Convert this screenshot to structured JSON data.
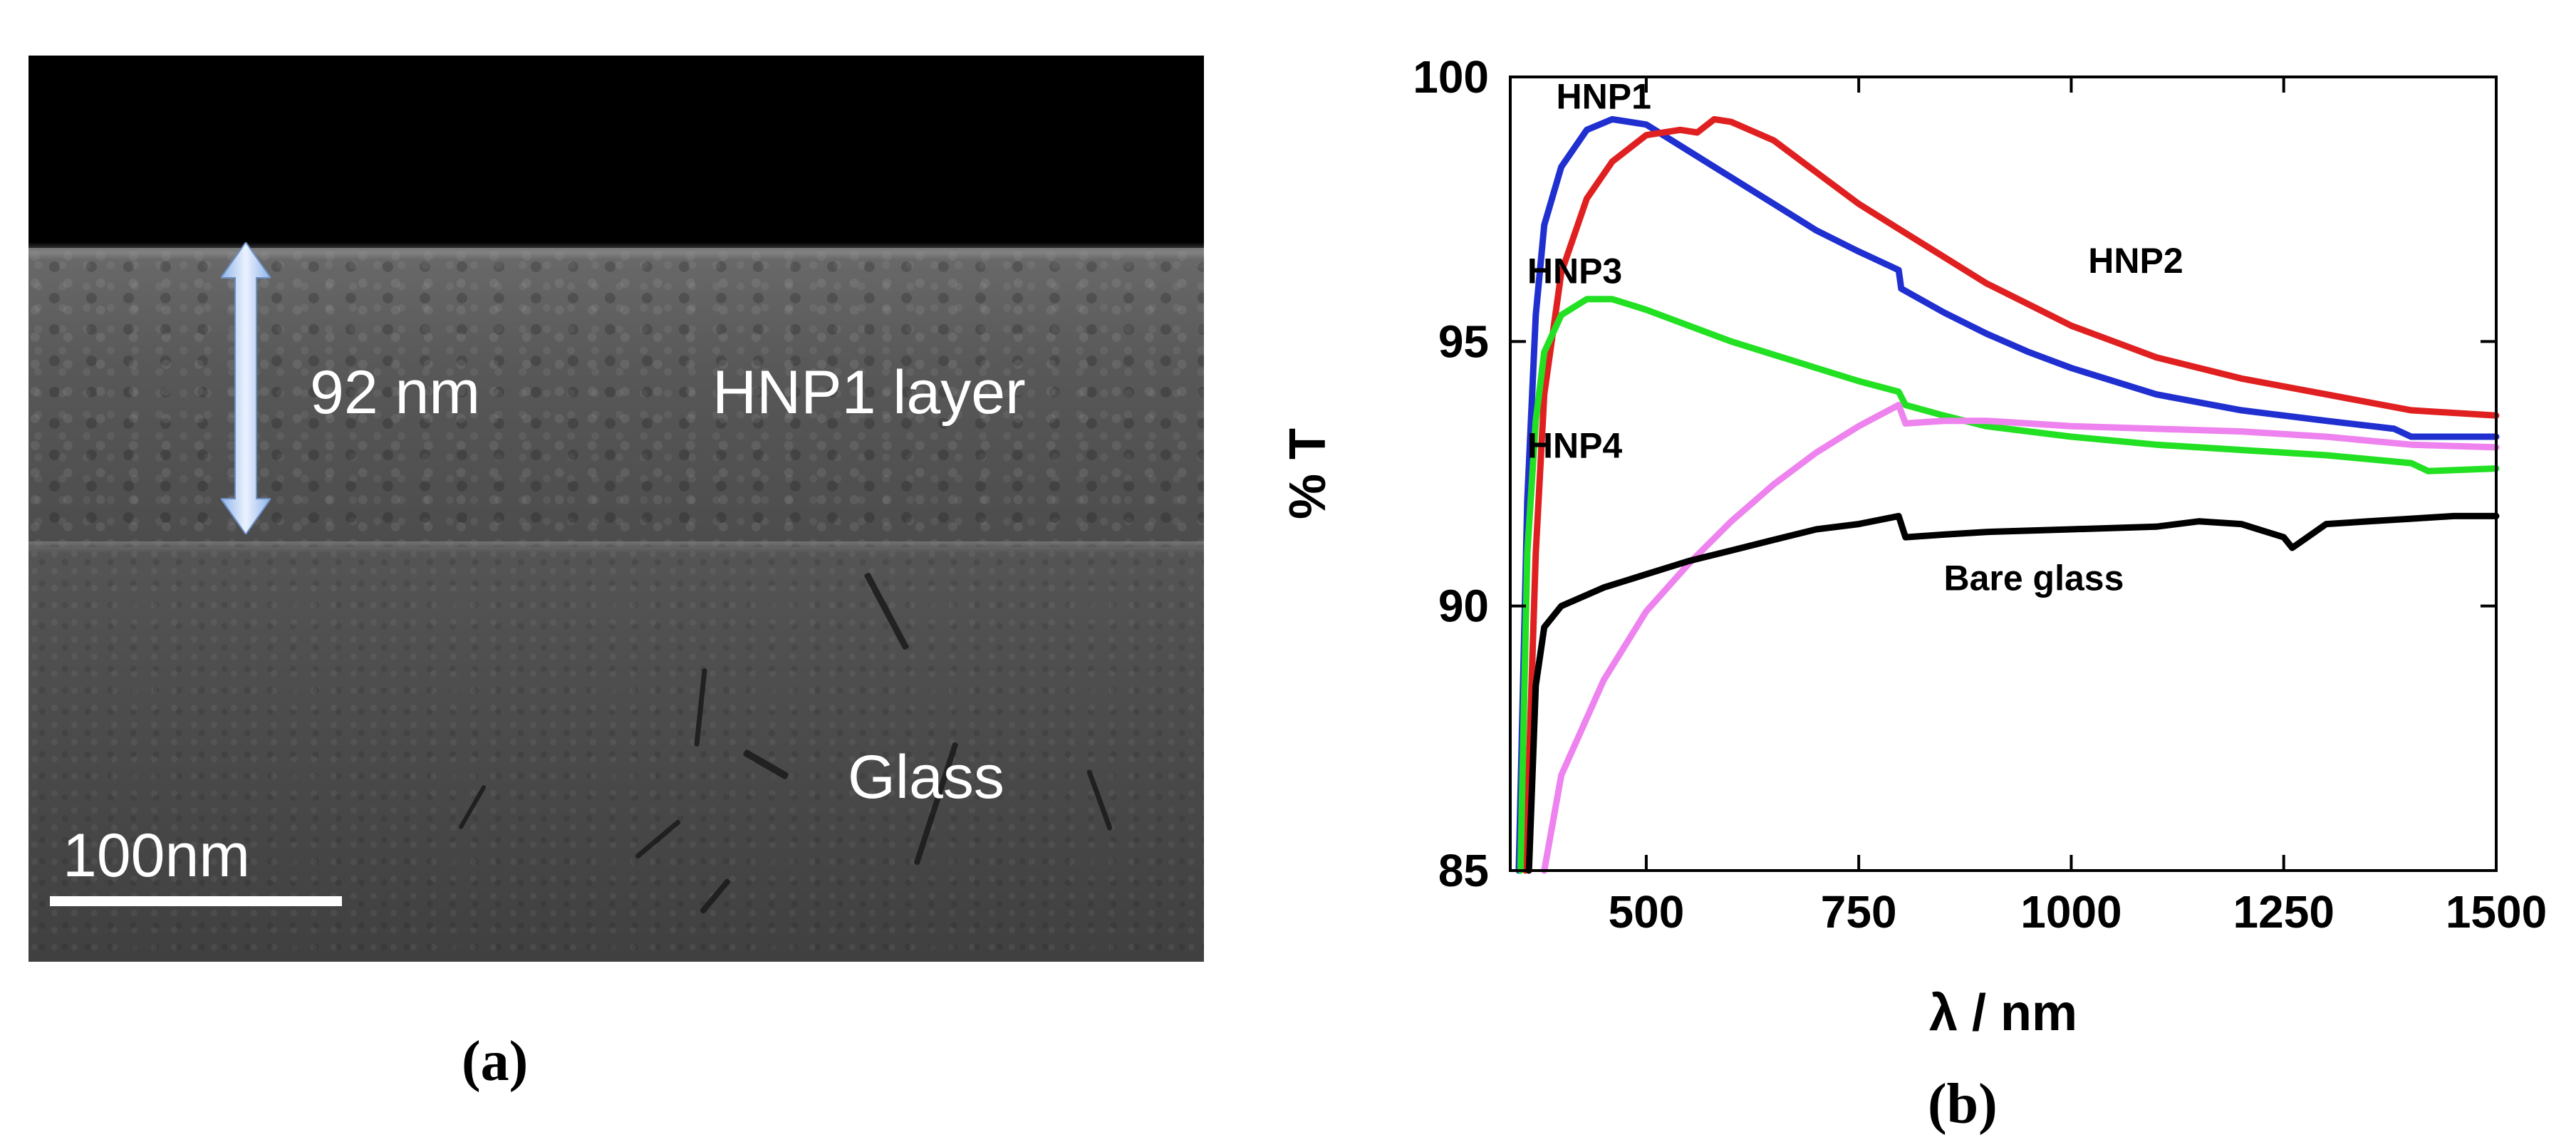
{
  "panel_a": {
    "thickness_label": "92 nm",
    "layer_label": "HNP1 layer",
    "substrate_label": "Glass",
    "scale_label": "100nm",
    "caption": "(a)"
  },
  "panel_b": {
    "caption": "(b)"
  },
  "chart_data": {
    "type": "line",
    "xlabel": "λ / nm",
    "ylabel": "% T",
    "xlim": [
      340,
      1500
    ],
    "ylim": [
      85,
      100
    ],
    "xticks": [
      500,
      750,
      1000,
      1250,
      1500
    ],
    "yticks": [
      85,
      90,
      95,
      100
    ],
    "grid": false,
    "legend": "inline labels",
    "series": [
      {
        "name": "HNP1",
        "color": "#1f2fd0",
        "points": [
          [
            350,
            85
          ],
          [
            360,
            92
          ],
          [
            370,
            95.5
          ],
          [
            380,
            97.2
          ],
          [
            400,
            98.3
          ],
          [
            430,
            99.0
          ],
          [
            460,
            99.2
          ],
          [
            500,
            99.1
          ],
          [
            550,
            98.6
          ],
          [
            600,
            98.1
          ],
          [
            650,
            97.6
          ],
          [
            700,
            97.1
          ],
          [
            750,
            96.7
          ],
          [
            797,
            96.35
          ],
          [
            800,
            96.0
          ],
          [
            850,
            95.55
          ],
          [
            900,
            95.15
          ],
          [
            950,
            94.8
          ],
          [
            1000,
            94.5
          ],
          [
            1100,
            94.0
          ],
          [
            1200,
            93.7
          ],
          [
            1300,
            93.5
          ],
          [
            1380,
            93.35
          ],
          [
            1400,
            93.2
          ],
          [
            1500,
            93.2
          ]
        ]
      },
      {
        "name": "HNP2",
        "color": "#e02020",
        "points": [
          [
            358,
            85
          ],
          [
            370,
            91
          ],
          [
            380,
            94
          ],
          [
            400,
            96.3
          ],
          [
            430,
            97.7
          ],
          [
            460,
            98.4
          ],
          [
            500,
            98.9
          ],
          [
            540,
            99.0
          ],
          [
            560,
            98.95
          ],
          [
            580,
            99.2
          ],
          [
            600,
            99.15
          ],
          [
            650,
            98.8
          ],
          [
            700,
            98.2
          ],
          [
            750,
            97.6
          ],
          [
            800,
            97.1
          ],
          [
            850,
            96.6
          ],
          [
            900,
            96.1
          ],
          [
            950,
            95.7
          ],
          [
            1000,
            95.3
          ],
          [
            1050,
            95.0
          ],
          [
            1100,
            94.7
          ],
          [
            1200,
            94.3
          ],
          [
            1300,
            94.0
          ],
          [
            1400,
            93.7
          ],
          [
            1500,
            93.6
          ]
        ]
      },
      {
        "name": "HNP3",
        "color": "#22e022",
        "points": [
          [
            352,
            85
          ],
          [
            360,
            91
          ],
          [
            370,
            93.5
          ],
          [
            380,
            94.8
          ],
          [
            400,
            95.5
          ],
          [
            430,
            95.8
          ],
          [
            460,
            95.8
          ],
          [
            500,
            95.6
          ],
          [
            550,
            95.3
          ],
          [
            600,
            95.0
          ],
          [
            650,
            94.75
          ],
          [
            700,
            94.5
          ],
          [
            750,
            94.25
          ],
          [
            797,
            94.05
          ],
          [
            805,
            93.8
          ],
          [
            850,
            93.6
          ],
          [
            900,
            93.4
          ],
          [
            950,
            93.3
          ],
          [
            1000,
            93.2
          ],
          [
            1100,
            93.05
          ],
          [
            1200,
            92.95
          ],
          [
            1300,
            92.85
          ],
          [
            1400,
            92.7
          ],
          [
            1420,
            92.55
          ],
          [
            1500,
            92.6
          ]
        ]
      },
      {
        "name": "HNP4",
        "color": "#ee82ee",
        "points": [
          [
            380,
            85
          ],
          [
            400,
            86.8
          ],
          [
            450,
            88.6
          ],
          [
            500,
            89.9
          ],
          [
            550,
            90.8
          ],
          [
            600,
            91.6
          ],
          [
            650,
            92.3
          ],
          [
            700,
            92.9
          ],
          [
            750,
            93.4
          ],
          [
            797,
            93.8
          ],
          [
            805,
            93.45
          ],
          [
            850,
            93.5
          ],
          [
            900,
            93.5
          ],
          [
            950,
            93.45
          ],
          [
            1000,
            93.4
          ],
          [
            1100,
            93.35
          ],
          [
            1200,
            93.3
          ],
          [
            1300,
            93.2
          ],
          [
            1400,
            93.05
          ],
          [
            1500,
            93.0
          ]
        ]
      },
      {
        "name": "Bare glass",
        "color": "#000000",
        "points": [
          [
            362,
            85
          ],
          [
            370,
            88.5
          ],
          [
            380,
            89.6
          ],
          [
            400,
            90.0
          ],
          [
            450,
            90.35
          ],
          [
            500,
            90.6
          ],
          [
            550,
            90.85
          ],
          [
            600,
            91.05
          ],
          [
            650,
            91.25
          ],
          [
            700,
            91.45
          ],
          [
            750,
            91.55
          ],
          [
            797,
            91.7
          ],
          [
            805,
            91.3
          ],
          [
            850,
            91.35
          ],
          [
            900,
            91.4
          ],
          [
            1000,
            91.45
          ],
          [
            1100,
            91.5
          ],
          [
            1150,
            91.6
          ],
          [
            1200,
            91.55
          ],
          [
            1250,
            91.3
          ],
          [
            1260,
            91.1
          ],
          [
            1300,
            91.55
          ],
          [
            1350,
            91.6
          ],
          [
            1400,
            91.65
          ],
          [
            1450,
            91.7
          ],
          [
            1500,
            91.7
          ]
        ]
      }
    ]
  }
}
